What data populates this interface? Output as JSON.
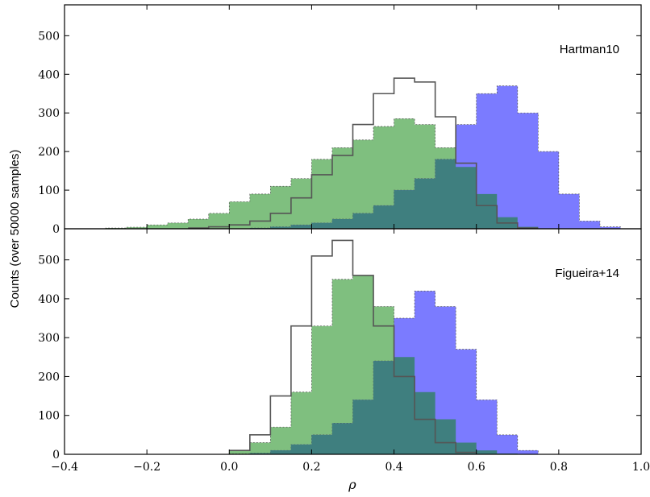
{
  "chart_data": {
    "type": "area",
    "xlabel": "ρ",
    "ylabel": "Counts (over 50000 samples)",
    "xlim": [
      -0.4,
      1.0
    ],
    "x_ticks": [
      -0.4,
      -0.2,
      0.0,
      0.2,
      0.4,
      0.6,
      0.8,
      1.0
    ],
    "x_tick_labels": [
      "−0.4",
      "−0.2",
      "0.0",
      "0.2",
      "0.4",
      "0.6",
      "0.8",
      "1.0"
    ],
    "grid": false,
    "legend": "none",
    "colors": {
      "blue_fill": "#7b7bff",
      "green_fill": "#7fbf7f",
      "overlap_fill": "#3f7f7f",
      "outline": "#555555"
    },
    "bin_edges": [
      -0.3,
      -0.25,
      -0.2,
      -0.15,
      -0.1,
      -0.05,
      0.0,
      0.05,
      0.1,
      0.15,
      0.2,
      0.25,
      0.3,
      0.35,
      0.4,
      0.45,
      0.5,
      0.55,
      0.6,
      0.65,
      0.7,
      0.75,
      0.8,
      0.85,
      0.9
    ],
    "panels": [
      {
        "label": "Hartman10",
        "ylim": [
          0,
          580
        ],
        "y_ticks": [
          0,
          100,
          200,
          300,
          400,
          500
        ],
        "y_tick_labels": [
          "0",
          "100",
          "200",
          "300",
          "400",
          "500"
        ],
        "series": [
          {
            "style": "filled",
            "color": "#7fbf7f",
            "x": [
              -0.3,
              -0.25,
              -0.2,
              -0.15,
              -0.1,
              -0.05,
              0.0,
              0.05,
              0.1,
              0.15,
              0.2,
              0.25,
              0.3,
              0.35,
              0.4,
              0.45,
              0.5,
              0.55,
              0.6,
              0.65,
              0.7
            ],
            "y": [
              2,
              4,
              10,
              15,
              25,
              40,
              70,
              90,
              110,
              130,
              180,
              210,
              230,
              265,
              285,
              270,
              210,
              160,
              90,
              30,
              5
            ]
          },
          {
            "style": "filled",
            "color": "#7b7bff",
            "x": [
              0.0,
              0.05,
              0.1,
              0.15,
              0.2,
              0.25,
              0.3,
              0.35,
              0.4,
              0.45,
              0.5,
              0.55,
              0.6,
              0.65,
              0.7,
              0.75,
              0.8,
              0.85,
              0.9
            ],
            "y": [
              0,
              2,
              5,
              10,
              15,
              25,
              40,
              60,
              100,
              130,
              180,
              270,
              350,
              370,
              300,
              200,
              90,
              20,
              5
            ]
          },
          {
            "style": "step",
            "color": "#555555",
            "x": [
              -0.1,
              -0.05,
              0.0,
              0.05,
              0.1,
              0.15,
              0.2,
              0.25,
              0.3,
              0.35,
              0.4,
              0.45,
              0.5,
              0.55,
              0.6,
              0.65,
              0.7
            ],
            "y": [
              2,
              5,
              10,
              20,
              40,
              80,
              140,
              190,
              270,
              350,
              390,
              380,
              290,
              170,
              60,
              15,
              2
            ]
          }
        ]
      },
      {
        "label": "Figueira+14",
        "ylim": [
          0,
          580
        ],
        "y_ticks": [
          0,
          100,
          200,
          300,
          400,
          500
        ],
        "y_tick_labels": [
          "0",
          "100",
          "200",
          "300",
          "400",
          "500"
        ],
        "series": [
          {
            "style": "filled",
            "color": "#7fbf7f",
            "x": [
              0.0,
              0.05,
              0.1,
              0.15,
              0.2,
              0.25,
              0.3,
              0.35,
              0.4,
              0.45,
              0.5,
              0.55,
              0.6,
              0.65
            ],
            "y": [
              10,
              30,
              70,
              160,
              330,
              450,
              460,
              380,
              250,
              160,
              90,
              30,
              10,
              2
            ]
          },
          {
            "style": "filled",
            "color": "#7b7bff",
            "x": [
              0.0,
              0.05,
              0.1,
              0.15,
              0.2,
              0.25,
              0.3,
              0.35,
              0.4,
              0.45,
              0.5,
              0.55,
              0.6,
              0.65,
              0.7
            ],
            "y": [
              1,
              3,
              10,
              25,
              50,
              80,
              140,
              240,
              350,
              420,
              380,
              270,
              140,
              50,
              10
            ]
          },
          {
            "style": "step",
            "color": "#555555",
            "x": [
              0.0,
              0.05,
              0.1,
              0.15,
              0.2,
              0.25,
              0.3,
              0.35,
              0.4,
              0.45,
              0.5,
              0.55
            ],
            "y": [
              10,
              50,
              150,
              330,
              510,
              550,
              460,
              330,
              200,
              90,
              30,
              5
            ]
          }
        ]
      }
    ]
  }
}
